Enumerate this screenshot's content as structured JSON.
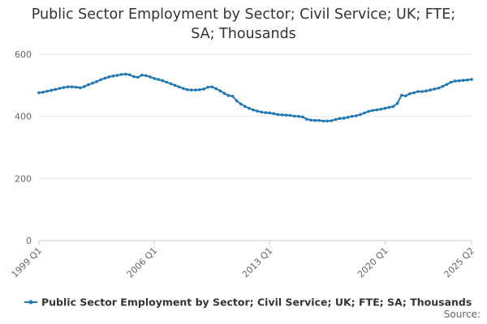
{
  "chart_data": {
    "type": "line",
    "title_lines": [
      "Public Sector Employment by Sector; Civil Service; UK; FTE;",
      "SA; Thousands"
    ],
    "xlabel": "",
    "ylabel": "",
    "ylim": [
      0,
      600
    ],
    "y_ticks": [
      0,
      200,
      400,
      600
    ],
    "x_tick_labels": [
      "1999 Q1",
      "2006 Q1",
      "2013 Q1",
      "2020 Q1",
      "2025 Q2"
    ],
    "grid": true,
    "legend_position": "bottom",
    "source_label": "Source:",
    "colors": {
      "series": "#1f77b4",
      "grid": "#e6e6e6",
      "axis": "#cccccc"
    },
    "series": [
      {
        "name": "Public Sector Employment by Sector; Civil Service; UK; FTE; SA; Thousands",
        "start": "1999 Q1",
        "x": [
          "1999 Q1",
          "1999 Q2",
          "1999 Q3",
          "1999 Q4",
          "2000 Q1",
          "2000 Q2",
          "2000 Q3",
          "2000 Q4",
          "2001 Q1",
          "2001 Q2",
          "2001 Q3",
          "2001 Q4",
          "2002 Q1",
          "2002 Q2",
          "2002 Q3",
          "2002 Q4",
          "2003 Q1",
          "2003 Q2",
          "2003 Q3",
          "2003 Q4",
          "2004 Q1",
          "2004 Q2",
          "2004 Q3",
          "2004 Q4",
          "2005 Q1",
          "2005 Q2",
          "2005 Q3",
          "2005 Q4",
          "2006 Q1",
          "2006 Q2",
          "2006 Q3",
          "2006 Q4",
          "2007 Q1",
          "2007 Q2",
          "2007 Q3",
          "2007 Q4",
          "2008 Q1",
          "2008 Q2",
          "2008 Q3",
          "2008 Q4",
          "2009 Q1",
          "2009 Q2",
          "2009 Q3",
          "2009 Q4",
          "2010 Q1",
          "2010 Q2",
          "2010 Q3",
          "2010 Q4",
          "2011 Q1",
          "2011 Q2",
          "2011 Q3",
          "2011 Q4",
          "2012 Q1",
          "2012 Q2",
          "2012 Q3",
          "2012 Q4",
          "2013 Q1",
          "2013 Q2",
          "2013 Q3",
          "2013 Q4",
          "2014 Q1",
          "2014 Q2",
          "2014 Q3",
          "2014 Q4",
          "2015 Q1",
          "2015 Q2",
          "2015 Q3",
          "2015 Q4",
          "2016 Q1",
          "2016 Q2",
          "2016 Q3",
          "2016 Q4",
          "2017 Q1",
          "2017 Q2",
          "2017 Q3",
          "2017 Q4",
          "2018 Q1",
          "2018 Q2",
          "2018 Q3",
          "2018 Q4",
          "2019 Q1",
          "2019 Q2",
          "2019 Q3",
          "2019 Q4",
          "2020 Q1",
          "2020 Q2",
          "2020 Q3",
          "2020 Q4",
          "2021 Q1",
          "2021 Q2",
          "2021 Q3",
          "2021 Q4",
          "2022 Q1",
          "2022 Q2",
          "2022 Q3",
          "2022 Q4",
          "2023 Q1",
          "2023 Q2",
          "2023 Q3",
          "2023 Q4",
          "2024 Q1",
          "2024 Q2",
          "2024 Q3",
          "2024 Q4",
          "2025 Q1",
          "2025 Q2"
        ],
        "values": [
          476,
          478,
          481,
          484,
          487,
          490,
          493,
          495,
          495,
          494,
          492,
          496,
          502,
          507,
          512,
          518,
          523,
          527,
          530,
          532,
          535,
          536,
          534,
          528,
          526,
          533,
          531,
          527,
          522,
          519,
          515,
          510,
          505,
          500,
          495,
          490,
          486,
          485,
          485,
          486,
          488,
          494,
          495,
          489,
          482,
          474,
          467,
          465,
          450,
          440,
          432,
          426,
          421,
          417,
          414,
          412,
          411,
          409,
          406,
          405,
          404,
          403,
          401,
          400,
          398,
          391,
          388,
          387,
          387,
          385,
          385,
          386,
          390,
          393,
          394,
          397,
          400,
          402,
          406,
          411,
          416,
          419,
          421,
          423,
          426,
          429,
          432,
          442,
          468,
          466,
          473,
          476,
          480,
          480,
          482,
          485,
          488,
          491,
          497,
          503,
          510,
          514,
          515,
          516,
          517,
          519
        ]
      }
    ]
  }
}
